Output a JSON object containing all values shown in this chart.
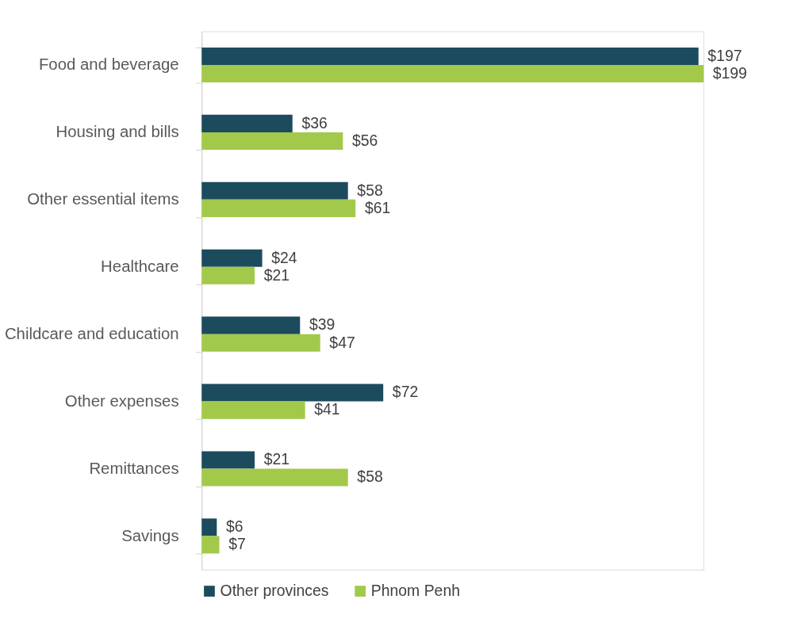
{
  "chart_data": {
    "type": "bar",
    "orientation": "horizontal",
    "categories": [
      "Food and beverage",
      "Housing and bills",
      "Other essential items",
      "Healthcare",
      "Childcare and education",
      "Other expenses",
      "Remittances",
      "Savings"
    ],
    "series": [
      {
        "name": "Other provinces",
        "color": "#1d4b5e",
        "values": [
          197,
          36,
          58,
          24,
          39,
          72,
          21,
          6
        ],
        "value_labels": [
          "$197",
          "$36",
          "$58",
          "$24",
          "$39",
          "$72",
          "$21",
          "$6"
        ]
      },
      {
        "name": "Phnom Penh",
        "color": "#a2c94a",
        "values": [
          199,
          56,
          61,
          21,
          47,
          41,
          58,
          7
        ],
        "value_labels": [
          "$199",
          "$56",
          "$61",
          "$21",
          "$47",
          "$41",
          "$58",
          "$7"
        ]
      }
    ],
    "legend": "bottom",
    "grid": false
  }
}
